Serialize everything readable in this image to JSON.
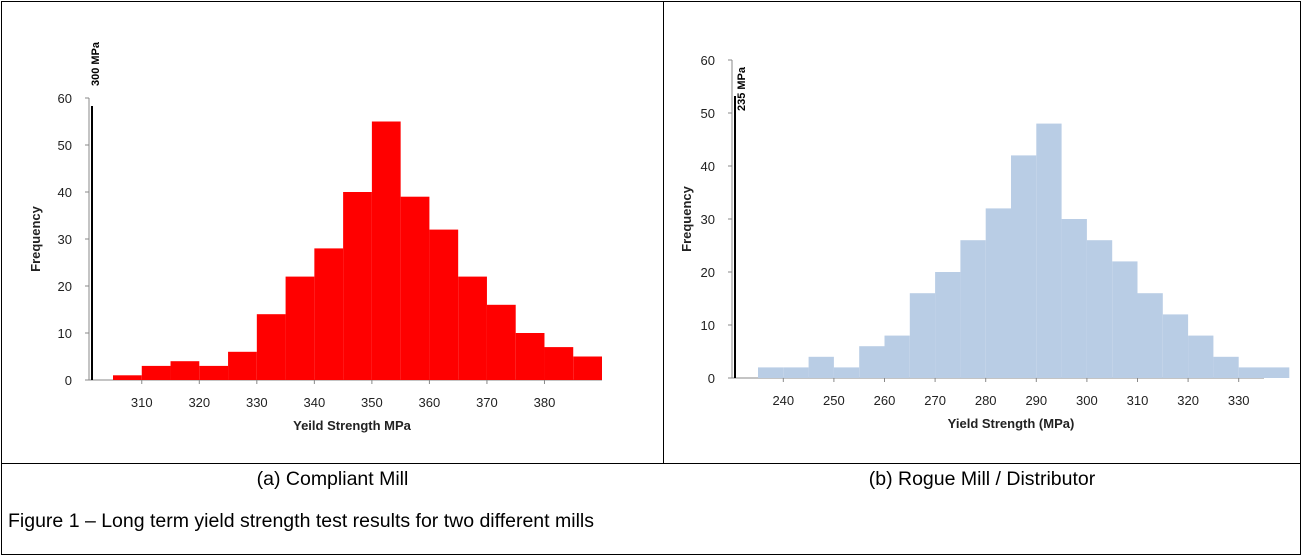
{
  "captions": {
    "panel_a": "(a) Compliant Mill",
    "panel_b": "(b) Rogue Mill / Distributor",
    "figure": "Figure 1 – Long term yield strength test results for two different mills"
  },
  "chart_data": [
    {
      "type": "bar",
      "panel": "a",
      "color": "#ff0000",
      "xlabel": "Yeild Strength MPa",
      "ylabel": "Frequency",
      "ylim": [
        0,
        60
      ],
      "y_ticks": [
        0,
        10,
        20,
        30,
        40,
        50,
        60
      ],
      "x_ticks": [
        310,
        320,
        330,
        340,
        350,
        360,
        370,
        380
      ],
      "bin_width": 5,
      "bin_starts": [
        305,
        310,
        315,
        320,
        325,
        330,
        335,
        340,
        345,
        350,
        355,
        360,
        365,
        370,
        375,
        380,
        385
      ],
      "values": [
        1,
        3,
        4,
        3,
        6,
        14,
        22,
        28,
        40,
        55,
        39,
        32,
        22,
        16,
        10,
        7,
        5
      ],
      "reference_line": {
        "value": 300,
        "label": "300 MPa"
      },
      "grid": false
    },
    {
      "type": "bar",
      "panel": "b",
      "color": "#b9cde5",
      "xlabel": "Yield Strength (MPa)",
      "ylabel": "Frequency",
      "ylim": [
        0,
        60
      ],
      "y_ticks": [
        0,
        10,
        20,
        30,
        40,
        50,
        60
      ],
      "x_ticks": [
        240,
        250,
        260,
        270,
        280,
        290,
        300,
        310,
        320,
        330
      ],
      "bin_width": 5,
      "bin_starts": [
        235,
        240,
        245,
        250,
        255,
        260,
        265,
        270,
        275,
        280,
        285,
        290,
        295,
        300,
        305,
        310,
        315,
        320,
        325,
        330,
        335
      ],
      "values": [
        2,
        2,
        4,
        2,
        6,
        8,
        16,
        20,
        26,
        32,
        42,
        48,
        30,
        26,
        22,
        16,
        12,
        8,
        4,
        2,
        2
      ],
      "reference_line": {
        "value": 235,
        "label": "235 MPa"
      },
      "grid": false
    }
  ]
}
